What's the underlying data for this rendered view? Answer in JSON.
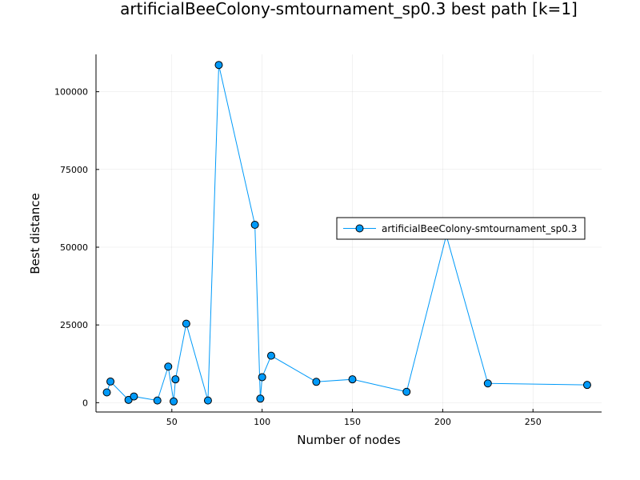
{
  "chart_data": {
    "type": "line",
    "title": "artificialBeeColony-smtournament_sp0.3 best path [k=1]",
    "xlabel": "Number of nodes",
    "ylabel": "Best distance",
    "xlim": [
      8,
      288
    ],
    "ylim": [
      -3000,
      112000
    ],
    "xticks": [
      50,
      100,
      150,
      200,
      250
    ],
    "yticks": [
      0,
      25000,
      50000,
      75000,
      100000
    ],
    "grid": true,
    "legend_position": "right",
    "series": [
      {
        "name": "artificialBeeColony-smtournament_sp0.3",
        "color": "#009af9",
        "x": [
          14,
          16,
          26,
          29,
          42,
          48,
          51,
          52,
          58,
          70,
          76,
          96,
          99,
          100,
          105,
          130,
          150,
          180,
          202,
          225,
          280
        ],
        "y": [
          3300,
          6800,
          900,
          2000,
          700,
          11600,
          400,
          7500,
          25400,
          700,
          108600,
          57200,
          1300,
          8200,
          15100,
          6700,
          7500,
          3500,
          53800,
          6200,
          5700
        ]
      }
    ]
  }
}
